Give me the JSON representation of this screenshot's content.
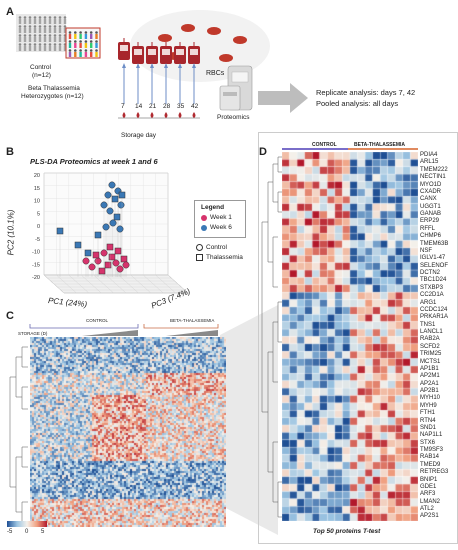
{
  "panels": {
    "A": "A",
    "B": "B",
    "C": "C",
    "D": "D"
  },
  "panel_a": {
    "control_label": "Control",
    "control_n": "(n=12)",
    "beta_label_1": "Beta Thalassemia",
    "beta_label_2": "Heterozygotes (n=12)",
    "rbc_label": "RBCs",
    "days": [
      "7",
      "14",
      "21",
      "28",
      "35",
      "42"
    ],
    "storage_label": "Storage day",
    "proteomics_label": "Proteomics",
    "replicate_text": "Replicate analysis: days 7, 42",
    "pooled_text": "Pooled analysis: all days"
  },
  "panel_b": {
    "title": "PLS-DA Proteomics at week 1 and 6",
    "legend_title": "Legend",
    "legend_week1": "Week 1",
    "legend_week6": "Week 6",
    "legend_control": "Control",
    "legend_thal": "Thalassemia",
    "pc1_label": "PC1 (24%)",
    "pc2_label": "PC2 (10.1%)",
    "pc3_label": "PC3 (7.4%)",
    "y_ticks": [
      "20",
      "15",
      "10",
      "5",
      "0",
      "-5",
      "-10",
      "-15",
      "-20"
    ],
    "colors": {
      "week1": "#d6336c",
      "week6": "#3a78b5"
    }
  },
  "panel_c": {
    "control_label": "CONTROL",
    "beta_label": "BETA-THALASSEMIA",
    "storage_label": "STORAGE (D)",
    "scale_ticks": [
      "-5",
      "0",
      "5"
    ]
  },
  "panel_d": {
    "control_label": "CONTROL",
    "beta_label": "BETA-THALASSEMIA",
    "caption": "Top 50 proteins T-test",
    "proteins": [
      "PDIA4",
      "ARL15",
      "TMEM222",
      "NECTIN1",
      "MYO1D",
      "CXADR",
      "CANX",
      "UGGT1",
      "GANAB",
      "ERP29",
      "RFFL",
      "CHMP6",
      "TMEM63B",
      "NSF",
      "IGLV1-47",
      "SELENOF",
      "DCTN2",
      "TBC1D24",
      "STXBP3",
      "CC2D1A",
      "ARG1",
      "CCDC124",
      "PRKAR1A",
      "TNS1",
      "LANCL1",
      "RAB2A",
      "SCFD2",
      "TRIM25",
      "MCTS1",
      "AP1B1",
      "AP2M1",
      "AP2A1",
      "AP2B1",
      "MYH10",
      "MYH9",
      "FTH1",
      "RTN4",
      "SND1",
      "NAP1L1",
      "STX6",
      "TM9SF3",
      "RAB14",
      "TMED9",
      "RETREG3",
      "BNIP1",
      "GDE1",
      "ARF3",
      "LMAN2",
      "ATL2",
      "AP2S1"
    ]
  }
}
